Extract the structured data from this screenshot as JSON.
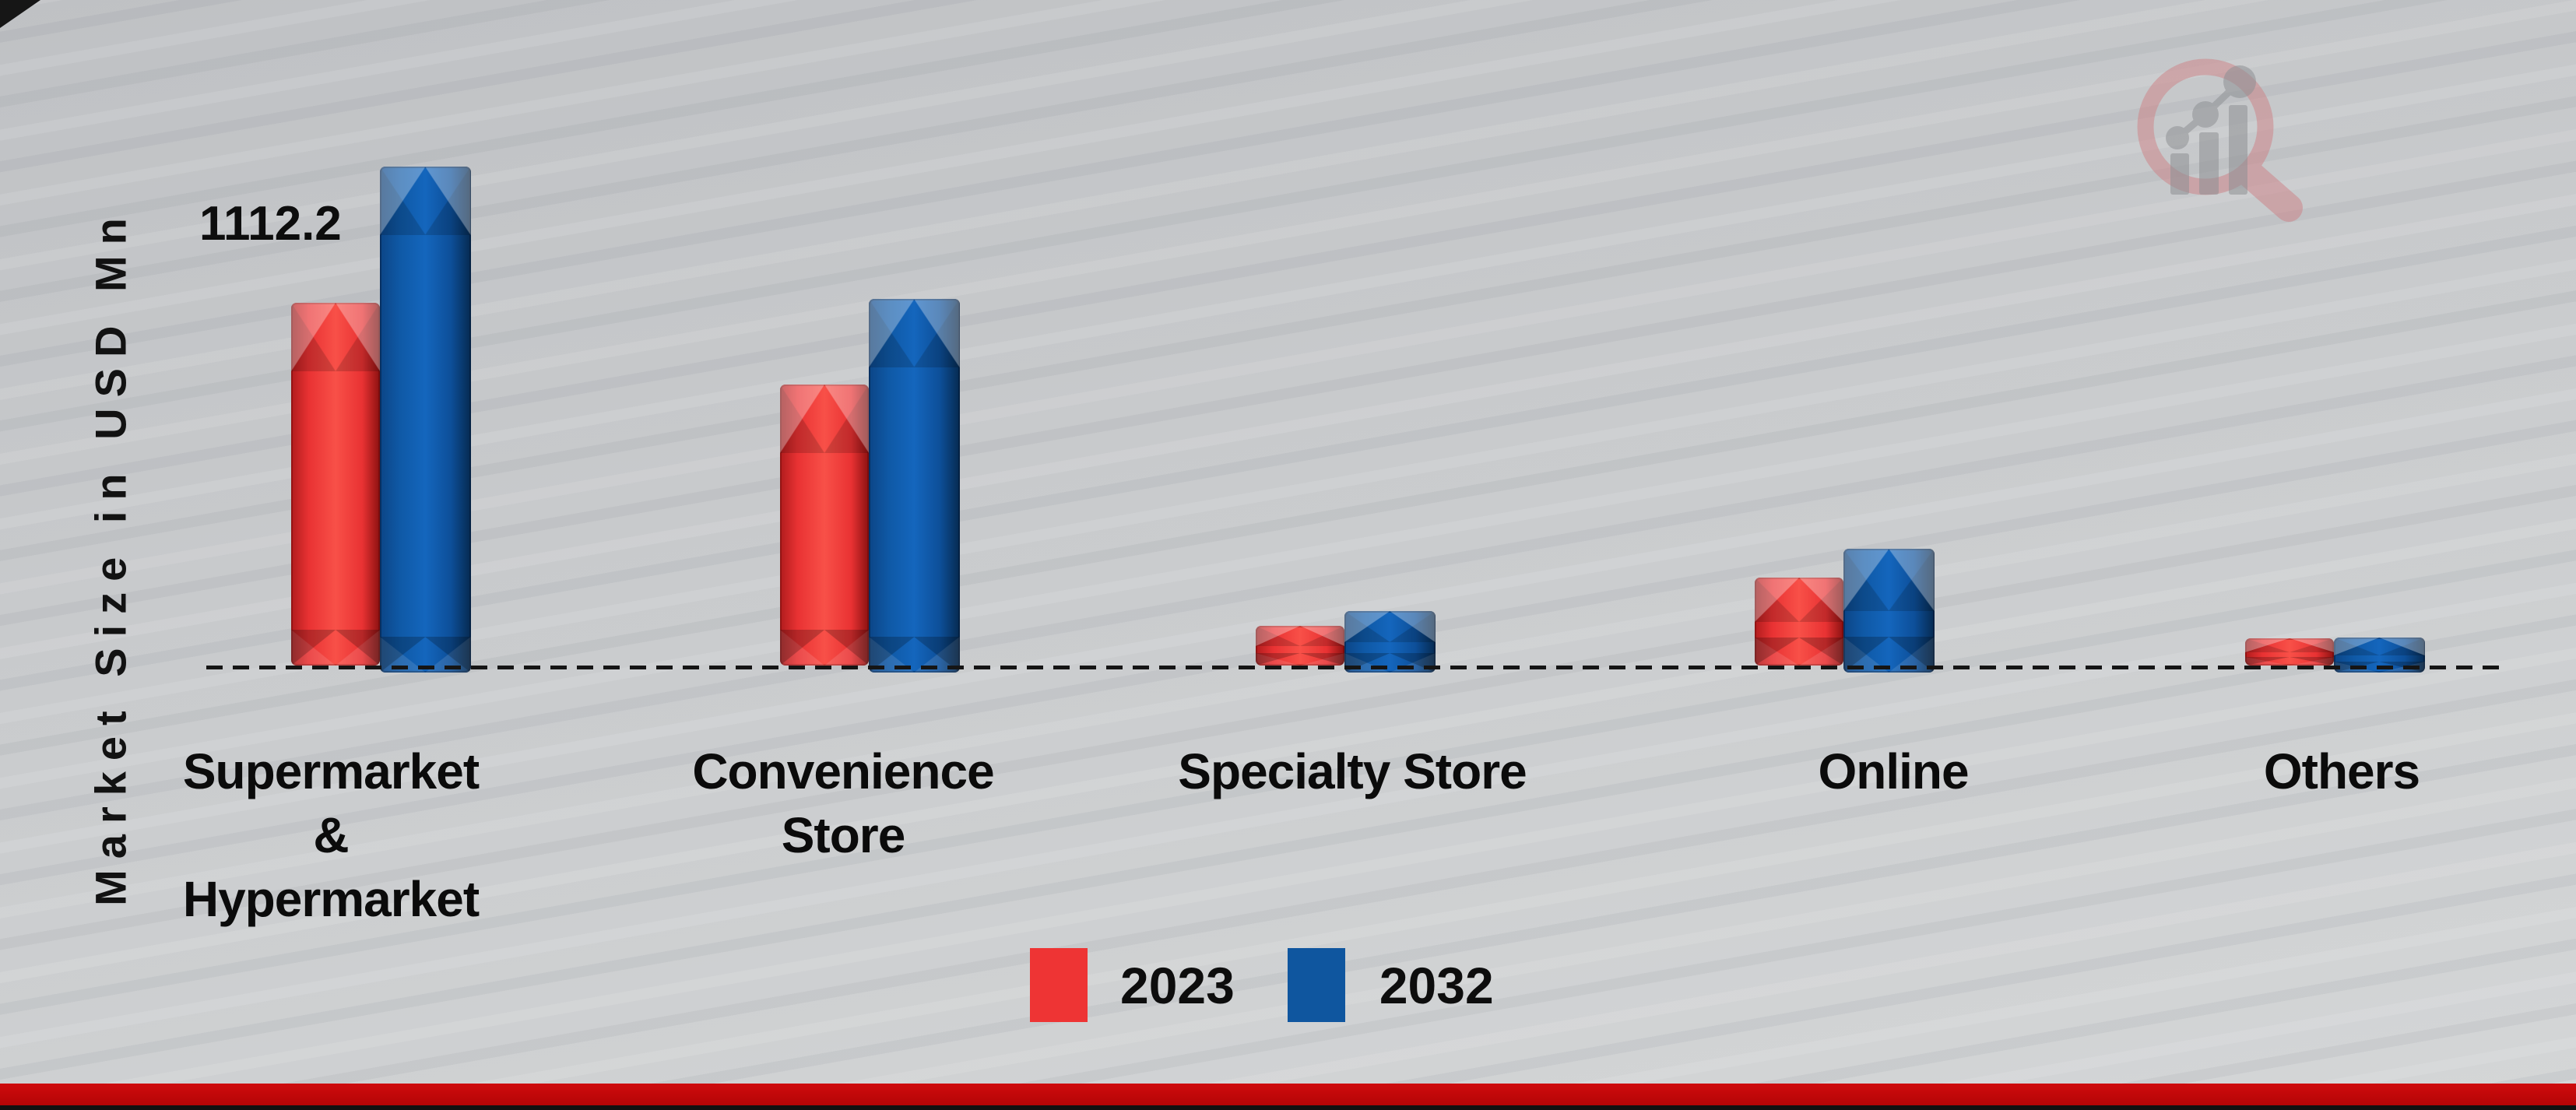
{
  "chart_data": {
    "type": "bar",
    "title": "",
    "ylabel": "Market Size in USD Mn",
    "xlabel": "",
    "categories": [
      "Supermarket & Hypermarket",
      "Convenience Store",
      "Specialty Store",
      "Online",
      "Others"
    ],
    "category_label_lines": [
      [
        "Supermarket",
        "&",
        "Hypermarket"
      ],
      [
        "Convenience",
        "Store"
      ],
      [
        "Specialty Store"
      ],
      [
        "Online"
      ],
      [
        "Others"
      ]
    ],
    "series": [
      {
        "name": "2023",
        "color": "#ee3434",
        "values": [
          1112.2,
          862,
          122,
          270,
          84
        ]
      },
      {
        "name": "2032",
        "color": "#0f569f",
        "values": [
          1551.2,
          1146,
          189,
          380,
          107
        ]
      }
    ],
    "data_label": {
      "text": "1112.2",
      "series": "2023",
      "category": "Supermarket & Hypermarket"
    },
    "axis": {
      "baseline_style": "dashed",
      "baseline_color": "#141414"
    },
    "legend_position": "bottom",
    "grid": false
  },
  "colors": {
    "background": "#c9cbcd",
    "bar_red": "#ee3434",
    "bar_blue": "#0f569f",
    "footer_bar": "#c40708",
    "watermark_ring": "#cd7f84",
    "watermark_bars": "#8e9094"
  }
}
